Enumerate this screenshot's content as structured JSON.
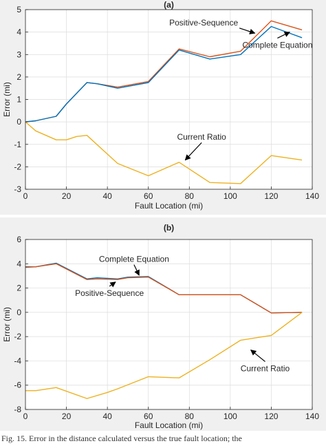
{
  "chart_data": [
    {
      "type": "line",
      "title": "(a)",
      "xlabel": "Fault Location (mi)",
      "ylabel": "Error (mi)",
      "xlim": [
        0,
        140
      ],
      "ylim": [
        -3,
        5
      ],
      "xticks": [
        0,
        20,
        40,
        60,
        80,
        100,
        120,
        140
      ],
      "yticks": [
        -3,
        -2,
        -1,
        0,
        1,
        2,
        3,
        4,
        5
      ],
      "grid": true,
      "legend": "none",
      "series": [
        {
          "name": "Positive-Sequence",
          "color": "#D95319",
          "x": [
            0,
            5,
            15,
            20,
            30,
            35,
            45,
            60,
            75,
            90,
            105,
            120,
            135
          ],
          "y": [
            0,
            0.05,
            0.25,
            0.8,
            1.75,
            1.7,
            1.55,
            1.8,
            3.25,
            2.9,
            3.15,
            4.5,
            4.1
          ]
        },
        {
          "name": "Complete Equation",
          "color": "#0072BD",
          "x": [
            0,
            5,
            15,
            20,
            30,
            35,
            45,
            60,
            75,
            90,
            105,
            120,
            135
          ],
          "y": [
            0,
            0.05,
            0.25,
            0.8,
            1.75,
            1.7,
            1.5,
            1.75,
            3.2,
            2.8,
            3.0,
            4.25,
            3.75
          ]
        },
        {
          "name": "Current Ratio",
          "color": "#EDB120",
          "x": [
            0,
            5,
            15,
            20,
            25,
            30,
            45,
            60,
            75,
            90,
            105,
            120,
            135
          ],
          "y": [
            0,
            -0.4,
            -0.8,
            -0.8,
            -0.65,
            -0.6,
            -1.85,
            -2.4,
            -1.8,
            -2.7,
            -2.75,
            -1.5,
            -1.7
          ]
        }
      ],
      "annotations": [
        {
          "text": "Positive-Sequence",
          "x": 87,
          "y": 4.3,
          "ax": 112,
          "ay": 3.95
        },
        {
          "text": "Complete Equation",
          "x": 123,
          "y": 3.3,
          "ax": 129,
          "ay": 4.0
        },
        {
          "text": "Current Ratio",
          "x": 86,
          "y": -0.8,
          "ax": 78,
          "ay": -1.7
        }
      ]
    },
    {
      "type": "line",
      "title": "(b)",
      "xlabel": "Fault Location (mi)",
      "ylabel": "Error (mi)",
      "xlim": [
        0,
        140
      ],
      "ylim": [
        -8,
        6
      ],
      "xticks": [
        0,
        20,
        40,
        60,
        80,
        100,
        120,
        140
      ],
      "yticks": [
        -8,
        -6,
        -4,
        -2,
        0,
        2,
        4,
        6
      ],
      "grid": true,
      "legend": "none",
      "series": [
        {
          "name": "Complete Equation",
          "color": "#0072BD",
          "x": [
            0,
            5,
            15,
            30,
            35,
            45,
            50,
            60,
            75,
            90,
            105,
            120,
            135
          ],
          "y": [
            3.75,
            3.75,
            4.05,
            2.75,
            2.85,
            2.75,
            2.9,
            2.95,
            1.45,
            1.45,
            1.45,
            -0.05,
            0
          ]
        },
        {
          "name": "Positive-Sequence",
          "color": "#D95319",
          "x": [
            0,
            5,
            15,
            30,
            35,
            45,
            50,
            60,
            75,
            90,
            105,
            120,
            135
          ],
          "y": [
            3.7,
            3.75,
            4.0,
            2.7,
            2.75,
            2.7,
            2.85,
            2.9,
            1.45,
            1.45,
            1.45,
            -0.05,
            0
          ]
        },
        {
          "name": "Current Ratio",
          "color": "#EDB120",
          "x": [
            0,
            5,
            15,
            30,
            40,
            45,
            60,
            75,
            90,
            105,
            120,
            135
          ],
          "y": [
            -6.45,
            -6.45,
            -6.2,
            -7.1,
            -6.6,
            -6.3,
            -5.3,
            -5.4,
            -3.9,
            -2.3,
            -1.9,
            0
          ]
        }
      ],
      "annotations": [
        {
          "text": "Complete Equation",
          "x": 53,
          "y": 4.15,
          "ax": 55.5,
          "ay": 3.05
        },
        {
          "text": "Positive-Sequence",
          "x": 41,
          "y": 1.35,
          "ax": 44,
          "ay": 2.5
        },
        {
          "text": "Current Ratio",
          "x": 117,
          "y": -4.85,
          "ax": 110,
          "ay": -3.1
        }
      ]
    }
  ],
  "caption": "Fig. 15.  Error in the distance calculated versus the true fault location; the"
}
